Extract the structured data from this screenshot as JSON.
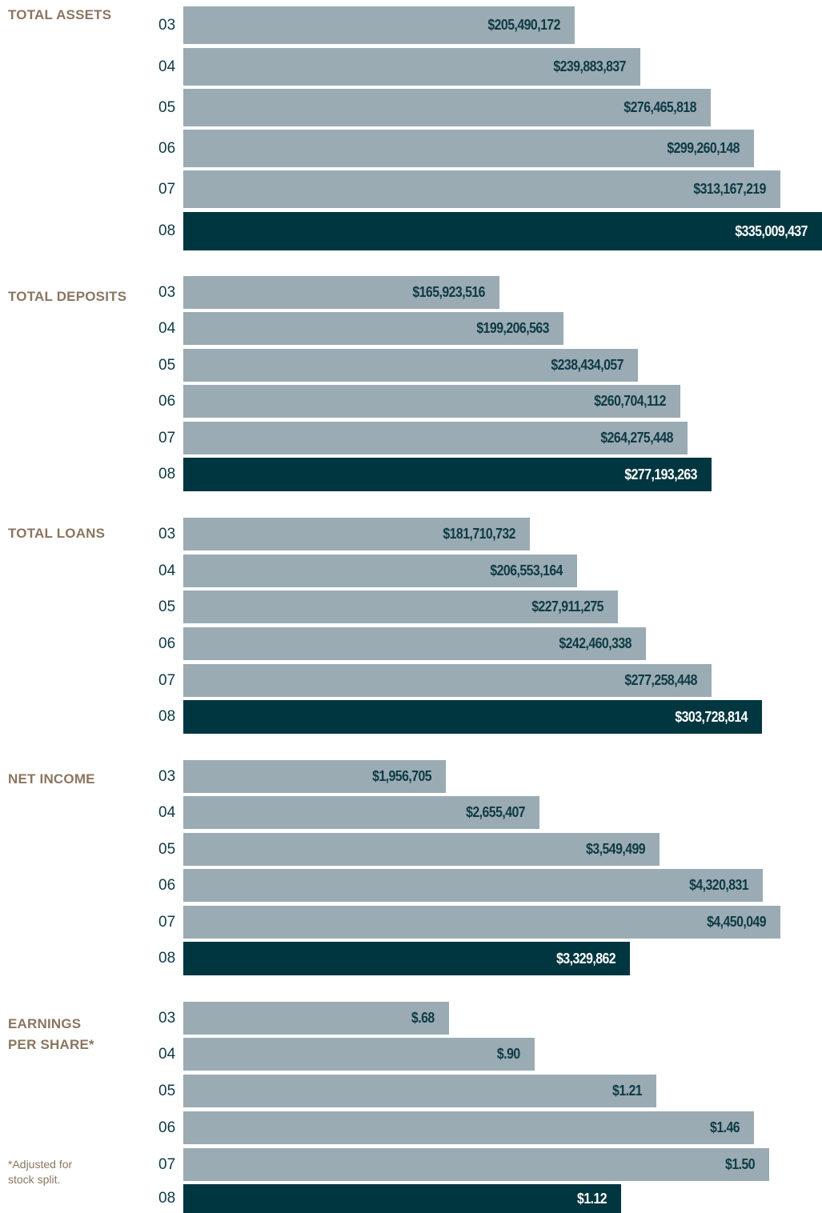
{
  "chart_data": [
    {
      "type": "bar",
      "title": "TOTAL ASSETS",
      "categories": [
        "03",
        "04",
        "05",
        "06",
        "07",
        "08"
      ],
      "values": [
        205490172,
        239883837,
        276465818,
        299260148,
        313167219,
        335009437
      ],
      "labels": [
        "$205,490,172",
        "$239,883,837",
        "$276,465,818",
        "$299,260,148",
        "$313,167,219",
        "$335,009,437"
      ],
      "highlight_index": 5
    },
    {
      "type": "bar",
      "title": "TOTAL DEPOSITS",
      "categories": [
        "03",
        "04",
        "05",
        "06",
        "07",
        "08"
      ],
      "values": [
        165923516,
        199206563,
        238434057,
        260704112,
        264275448,
        277193263
      ],
      "labels": [
        "$165,923,516",
        "$199,206,563",
        "$238,434,057",
        "$260,704,112",
        "$264,275,448",
        "$277,193,263"
      ],
      "highlight_index": 5
    },
    {
      "type": "bar",
      "title": "TOTAL LOANS",
      "categories": [
        "03",
        "04",
        "05",
        "06",
        "07",
        "08"
      ],
      "values": [
        181710732,
        206553164,
        227911275,
        242460338,
        277258448,
        303728814
      ],
      "labels": [
        "$181,710,732",
        "$206,553,164",
        "$227,911,275",
        "$242,460,338",
        "$277,258,448",
        "$303,728,814"
      ],
      "highlight_index": 5
    },
    {
      "type": "bar",
      "title": "NET INCOME",
      "categories": [
        "03",
        "04",
        "05",
        "06",
        "07",
        "08"
      ],
      "values": [
        1956705,
        2655407,
        3549499,
        4320831,
        4450049,
        3329862
      ],
      "labels": [
        "$1,956,705",
        "$2,655,407",
        "$3,549,499",
        "$4,320,831",
        "$4,450,049",
        "$3,329,862"
      ],
      "highlight_index": 5
    },
    {
      "type": "bar",
      "title": "EARNINGS\nPER SHARE*",
      "categories": [
        "03",
        "04",
        "05",
        "06",
        "07",
        "08"
      ],
      "values": [
        0.68,
        0.9,
        1.21,
        1.46,
        1.5,
        1.12
      ],
      "labels": [
        "$.68",
        "$.90",
        "$1.21",
        "$1.46",
        "$1.50",
        "$1.12"
      ],
      "highlight_index": 5
    }
  ],
  "footnote": "*Adjusted for\n  stock split.",
  "colors": {
    "bar": "#9aabb3",
    "highlight_bar": "#003640",
    "title": "#8a7660",
    "text": "#0e3a44"
  }
}
